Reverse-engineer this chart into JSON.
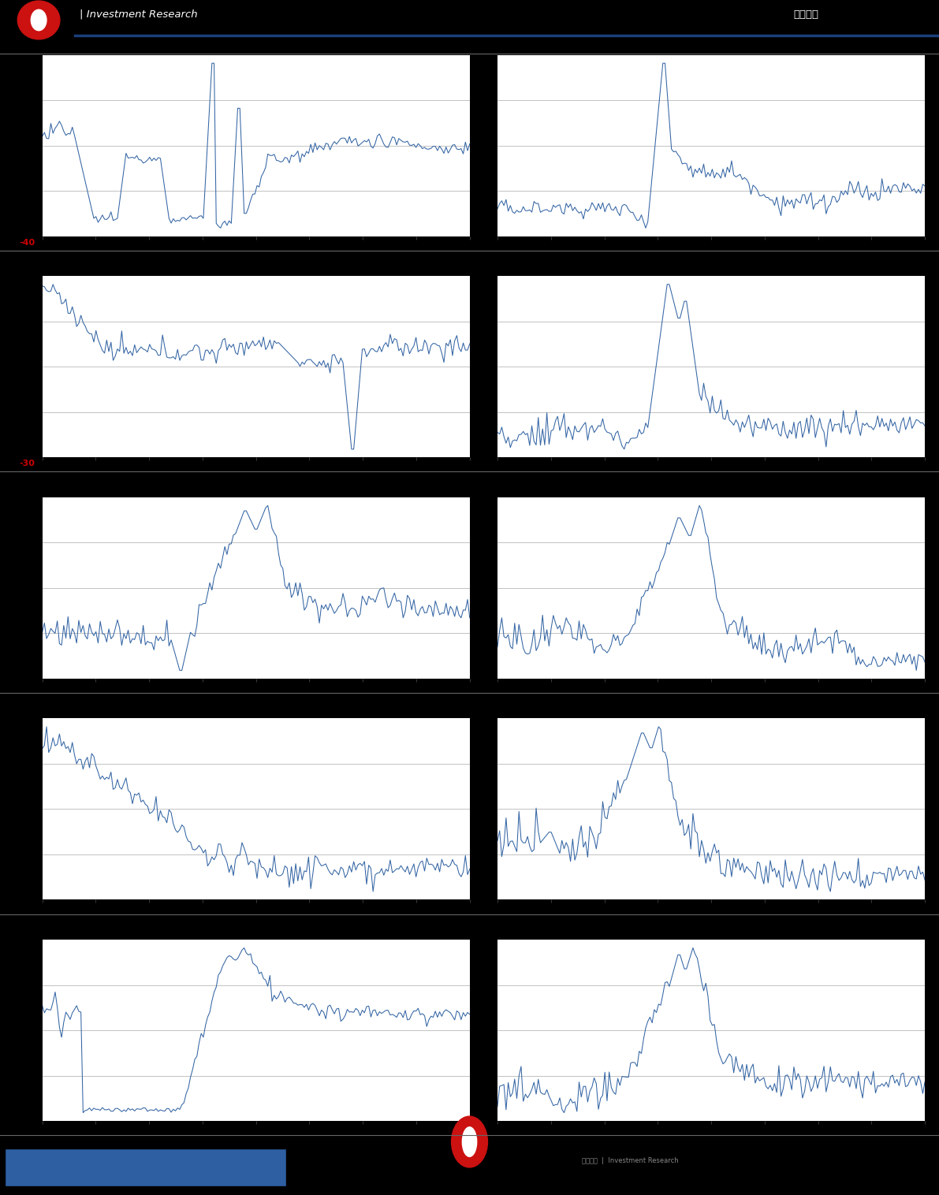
{
  "background_color": "#000000",
  "chart_bg": "#ffffff",
  "line_color": "#3465a4",
  "header_bg": "#000000",
  "header_line_color": "#1a3f7a",
  "footer_bg": "#000000",
  "footer_blue_rect": "#2e5fa3",
  "separator_color": "#666666",
  "red_label_color": "#cc0000",
  "n_rows": 5,
  "n_cols": 2,
  "red_labels": [
    "-40",
    "-30"
  ],
  "figsize": [
    11.91,
    15.16
  ],
  "dpi": 100,
  "header_text_left": "| Investment Research",
  "header_text_right": "估値周报",
  "grid_color": "#aaaaaa",
  "tick_color": "#555555"
}
